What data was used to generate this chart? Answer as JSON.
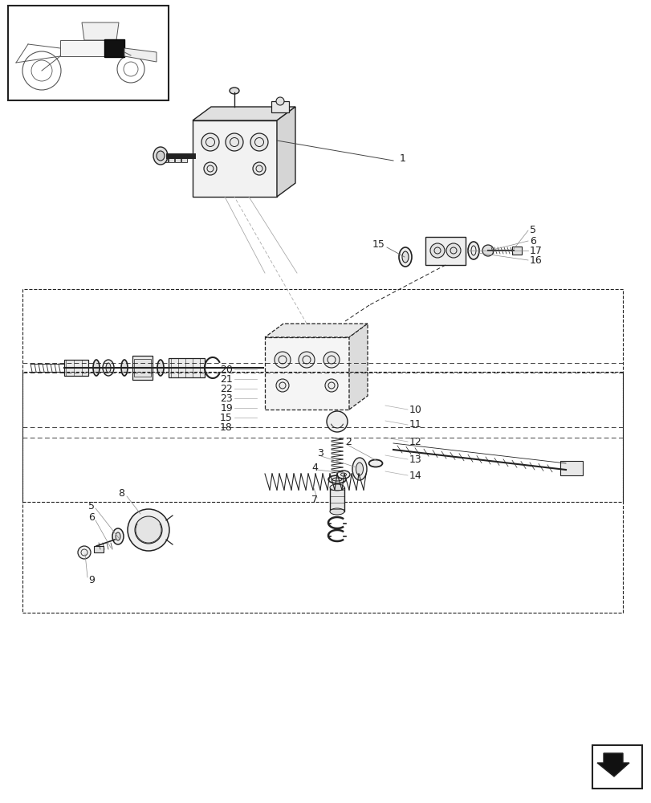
{
  "bg_color": "#ffffff",
  "line_color": "#222222",
  "fig_width": 8.12,
  "fig_height": 10.0,
  "dpi": 100
}
